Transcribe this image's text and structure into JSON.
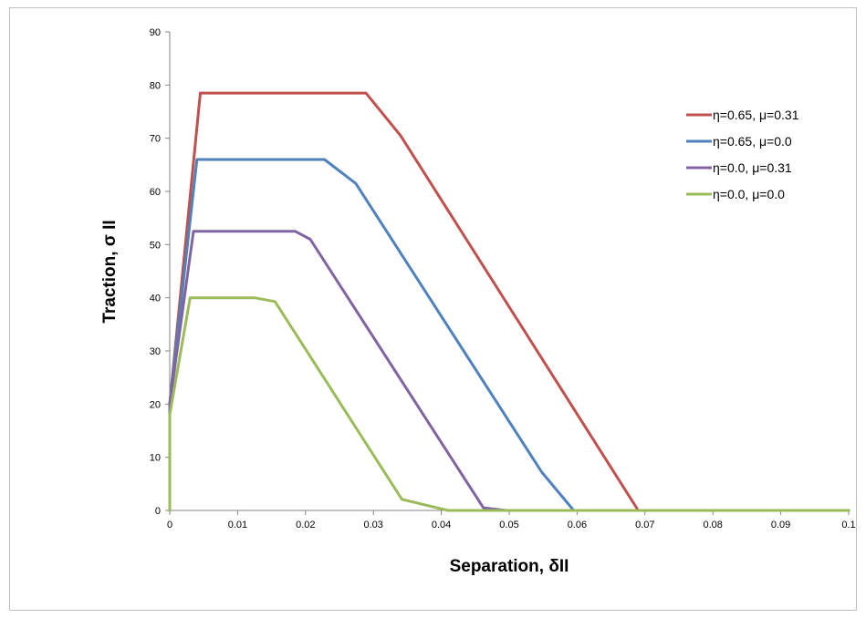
{
  "chart_data": {
    "type": "line",
    "xlabel": "Separation, δII",
    "ylabel": "Traction, σ II",
    "xlim": [
      0,
      0.1
    ],
    "ylim": [
      0,
      90
    ],
    "x_ticks": [
      "0",
      "0.01",
      "0.02",
      "0.03",
      "0.04",
      "0.05",
      "0.06",
      "0.07",
      "0.08",
      "0.09",
      "0.1"
    ],
    "y_ticks": [
      "0",
      "10",
      "20",
      "30",
      "40",
      "50",
      "60",
      "70",
      "80",
      "90"
    ],
    "grid": false,
    "legend_position": "right",
    "series": [
      {
        "name": "η=0.65, μ=0.31",
        "color": "#c0504d",
        "points": [
          [
            0,
            0
          ],
          [
            0,
            20
          ],
          [
            0.0045,
            78.5
          ],
          [
            0.0289,
            78.5
          ],
          [
            0.034,
            70.5
          ],
          [
            0.069,
            0
          ],
          [
            0.1,
            0
          ]
        ]
      },
      {
        "name": "η=0.65, μ=0.0",
        "color": "#4f81bd",
        "points": [
          [
            0,
            0
          ],
          [
            0,
            20
          ],
          [
            0.004,
            66
          ],
          [
            0.0228,
            66
          ],
          [
            0.0274,
            61.5
          ],
          [
            0.0548,
            7.2
          ],
          [
            0.0595,
            0
          ],
          [
            0.1,
            0
          ]
        ]
      },
      {
        "name": "η=0.0, μ=0.31",
        "color": "#8064a2",
        "points": [
          [
            0,
            0
          ],
          [
            0,
            20
          ],
          [
            0.0035,
            52.5
          ],
          [
            0.0185,
            52.5
          ],
          [
            0.0207,
            51
          ],
          [
            0.0462,
            0.5
          ],
          [
            0.0495,
            0
          ],
          [
            0.1,
            0
          ]
        ]
      },
      {
        "name": "η=0.0, μ=0.0",
        "color": "#9bbb59",
        "points": [
          [
            0,
            0
          ],
          [
            0,
            18
          ],
          [
            0.003,
            40
          ],
          [
            0.0125,
            40
          ],
          [
            0.0155,
            39.3
          ],
          [
            0.0342,
            2.1
          ],
          [
            0.041,
            0
          ],
          [
            0.1,
            0
          ]
        ]
      }
    ]
  }
}
